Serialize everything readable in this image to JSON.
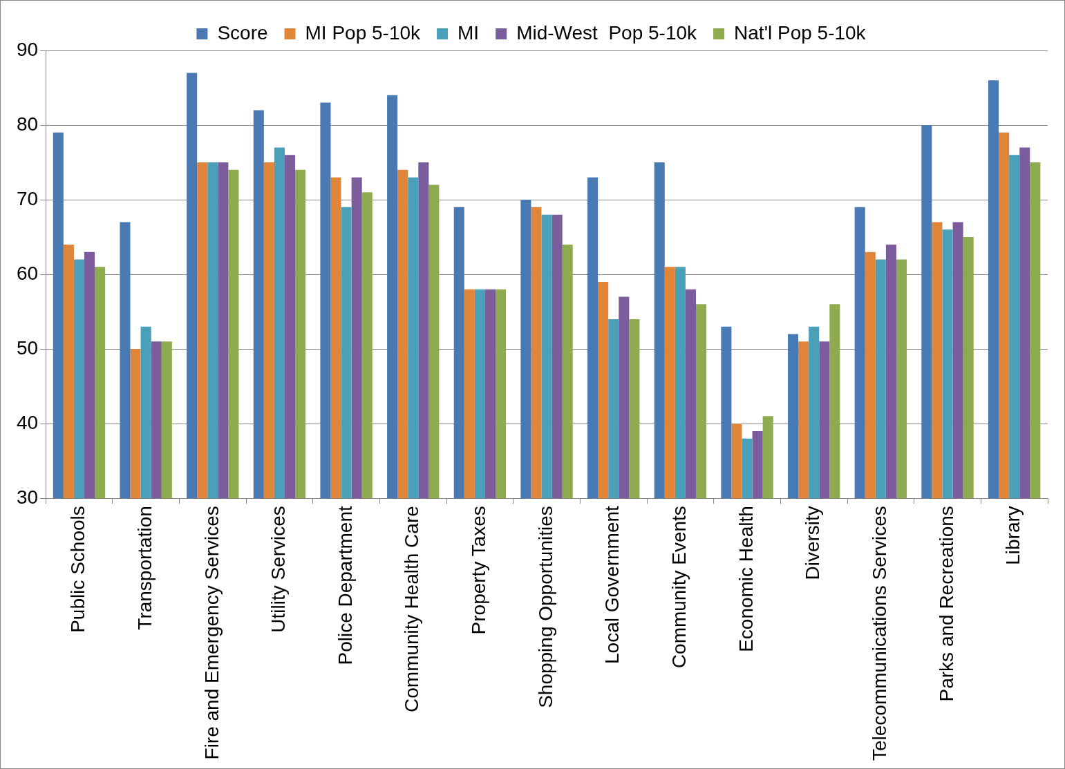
{
  "chart_data": {
    "type": "bar",
    "categories": [
      "Public Schools",
      "Transportation",
      "Fire and Emergency Services",
      "Utility Services",
      "Police Department",
      "Community Health Care",
      "Property Taxes",
      "Shopping Opportunities",
      "Local Government",
      "Community Events",
      "Economic Health",
      "Diversity",
      "Telecommunications Services",
      "Parks and Recreations",
      "Library"
    ],
    "series": [
      {
        "name": "Score",
        "color": "#4a7ab4",
        "values": [
          79,
          67,
          87,
          82,
          83,
          84,
          69,
          70,
          73,
          75,
          53,
          52,
          69,
          80,
          86
        ]
      },
      {
        "name": "MI Pop 5-10k",
        "color": "#e0863a",
        "values": [
          64,
          50,
          75,
          75,
          73,
          74,
          58,
          69,
          59,
          61,
          40,
          51,
          63,
          67,
          79
        ]
      },
      {
        "name": "MI",
        "color": "#4aa0b8",
        "values": [
          62,
          53,
          75,
          77,
          69,
          73,
          58,
          68,
          54,
          61,
          38,
          53,
          62,
          66,
          76
        ]
      },
      {
        "name": "Mid-West  Pop 5-10k",
        "color": "#7b5c9c",
        "values": [
          63,
          51,
          75,
          76,
          73,
          75,
          58,
          68,
          57,
          58,
          39,
          51,
          64,
          67,
          77
        ]
      },
      {
        "name": "Nat'l Pop 5-10k",
        "color": "#8eab50",
        "values": [
          61,
          51,
          74,
          74,
          71,
          72,
          58,
          64,
          54,
          56,
          41,
          56,
          62,
          65,
          75
        ]
      }
    ],
    "ylim": [
      30,
      90
    ],
    "yticks": [
      30,
      40,
      50,
      60,
      70,
      80,
      90
    ],
    "grid": "y",
    "legend": "top"
  }
}
